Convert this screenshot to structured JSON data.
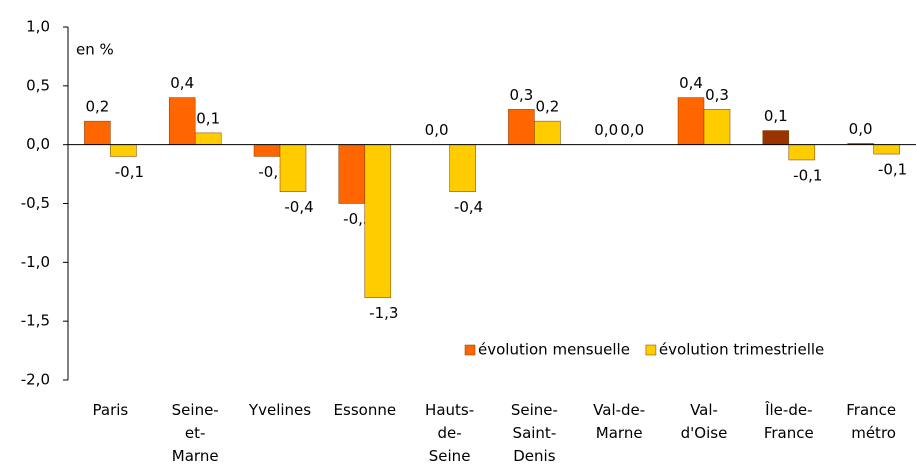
{
  "chart_data": {
    "type": "bar",
    "annotation": "en %",
    "categories": [
      "Paris",
      "Seine-et-Marne",
      "Yvelines",
      "Essonne",
      "Hauts-de-Seine",
      "Seine-Saint-Denis",
      "Val-de-Marne",
      "Val-d'Oise",
      "Île-de-France",
      "France métro"
    ],
    "series": [
      {
        "name": "évolution mensuelle",
        "color": "#ff6600",
        "colors": [
          "#ff6600",
          "#ff6600",
          "#ff6600",
          "#ff6600",
          "#ff6600",
          "#ff6600",
          "#ff6600",
          "#ff6600",
          "#993300",
          "#993300"
        ],
        "values": [
          0.2,
          0.4,
          -0.1,
          -0.5,
          0.0,
          0.3,
          0.0,
          0.4,
          0.12,
          0.01
        ],
        "value_labels": [
          "0,2",
          "0,4",
          "-0,1",
          "-0,5",
          "0,0",
          "0,3",
          "0,0",
          "0,4",
          "0,1",
          "0,0"
        ]
      },
      {
        "name": "évolution trimestrielle",
        "color": "#ffcc00",
        "values": [
          -0.1,
          0.1,
          -0.4,
          -1.3,
          -0.4,
          0.2,
          0.0,
          0.3,
          -0.13,
          -0.08
        ],
        "value_labels": [
          "-0,1",
          "0,1",
          "-0,4",
          "-1,3",
          "-0,4",
          "0,2",
          "0,0",
          "0,3",
          "-0,1",
          "-0,1"
        ]
      }
    ],
    "ylim": [
      -2,
      1
    ],
    "yticks": [
      {
        "value": -2,
        "label": "-2,0"
      },
      {
        "value": -1.5,
        "label": "-1,5"
      },
      {
        "value": -1,
        "label": "-1,0"
      },
      {
        "value": -0.5,
        "label": "-0,5"
      },
      {
        "value": 0,
        "label": "0,0"
      },
      {
        "value": 0.5,
        "label": "0,5"
      },
      {
        "value": 1,
        "label": "1,0"
      }
    ],
    "legend": "bottom-right"
  }
}
